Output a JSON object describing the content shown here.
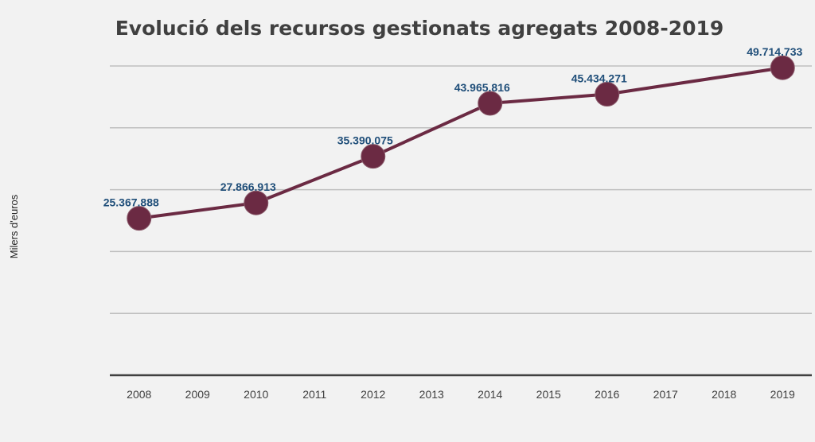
{
  "chart_data": {
    "type": "line",
    "title": "Evolució dels recursos gestionats agregats 2008-2019",
    "ylabel": "Milers d'euros",
    "xlabel": "",
    "categories": [
      "2008",
      "2009",
      "2010",
      "2011",
      "2012",
      "2013",
      "2014",
      "2015",
      "2016",
      "2017",
      "2018",
      "2019"
    ],
    "series": [
      {
        "color": "#6b2a43",
        "points": [
          {
            "x": "2008",
            "y": 25367888,
            "label": "25.367.888"
          },
          {
            "x": "2010",
            "y": 27866913,
            "label": "27.866.913"
          },
          {
            "x": "2012",
            "y": 35390075,
            "label": "35.390.075"
          },
          {
            "x": "2014",
            "y": 43965816,
            "label": "43.965.816"
          },
          {
            "x": "2016",
            "y": 45434271,
            "label": "45.434.271"
          },
          {
            "x": "2019",
            "y": 49714733,
            "label": "49.714.733"
          }
        ]
      }
    ],
    "ylim": [
      0,
      50000000
    ],
    "grid": true,
    "legend": "none"
  }
}
